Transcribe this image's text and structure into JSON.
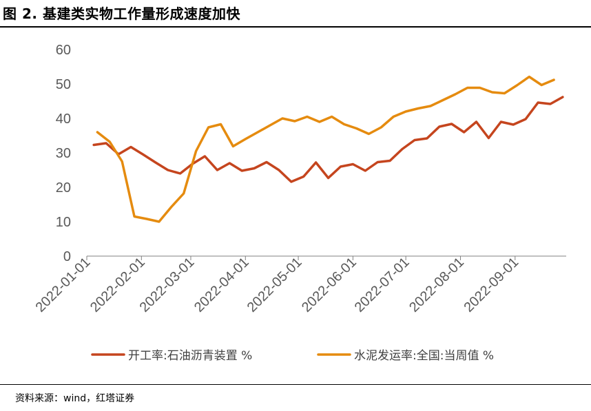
{
  "figure": {
    "title": "图 2. 基建类实物工作量形成速度加快",
    "source": "资料来源：wind，红塔证券"
  },
  "chart_data": {
    "type": "line",
    "title": "",
    "xlabel": "",
    "ylabel": "",
    "ylim": [
      0,
      60
    ],
    "yticks": [
      0,
      10,
      20,
      30,
      40,
      50,
      60
    ],
    "xlim": [
      "2022-01-01",
      "2022-09-30"
    ],
    "xticks": [
      "2022-01-01",
      "2022-02-01",
      "2022-03-01",
      "2022-04-01",
      "2022-05-01",
      "2022-06-01",
      "2022-07-01",
      "2022-08-01",
      "2022-09-01"
    ],
    "grid": false,
    "legend_position": "bottom",
    "series": [
      {
        "name": "开工率:石油沥青装置 %",
        "color": "#C5451E",
        "points": [
          [
            "2022-01-05",
            32.3
          ],
          [
            "2022-01-12",
            32.8
          ],
          [
            "2022-01-19",
            29.6
          ],
          [
            "2022-01-26",
            31.7
          ],
          [
            "2022-02-02",
            29.5
          ],
          [
            "2022-02-09",
            27.2
          ],
          [
            "2022-02-16",
            25.0
          ],
          [
            "2022-02-23",
            24.0
          ],
          [
            "2022-03-02",
            26.8
          ],
          [
            "2022-03-09",
            29.0
          ],
          [
            "2022-03-16",
            25.0
          ],
          [
            "2022-03-23",
            27.0
          ],
          [
            "2022-03-30",
            24.8
          ],
          [
            "2022-04-06",
            25.5
          ],
          [
            "2022-04-13",
            27.3
          ],
          [
            "2022-04-20",
            25.0
          ],
          [
            "2022-04-27",
            21.6
          ],
          [
            "2022-05-04",
            23.1
          ],
          [
            "2022-05-11",
            27.2
          ],
          [
            "2022-05-18",
            22.7
          ],
          [
            "2022-05-25",
            26.0
          ],
          [
            "2022-06-01",
            26.7
          ],
          [
            "2022-06-08",
            24.8
          ],
          [
            "2022-06-15",
            27.3
          ],
          [
            "2022-06-22",
            27.7
          ],
          [
            "2022-06-29",
            31.1
          ],
          [
            "2022-07-06",
            33.7
          ],
          [
            "2022-07-13",
            34.2
          ],
          [
            "2022-07-20",
            37.6
          ],
          [
            "2022-07-27",
            38.4
          ],
          [
            "2022-08-03",
            36.0
          ],
          [
            "2022-08-10",
            39.0
          ],
          [
            "2022-08-17",
            34.3
          ],
          [
            "2022-08-24",
            39.0
          ],
          [
            "2022-08-31",
            38.2
          ],
          [
            "2022-09-07",
            39.8
          ],
          [
            "2022-09-14",
            44.6
          ],
          [
            "2022-09-21",
            44.2
          ],
          [
            "2022-09-28",
            46.2
          ]
        ]
      },
      {
        "name": "水泥发运率:全国:当周值 %",
        "color": "#E58B0F",
        "points": [
          [
            "2022-01-07",
            36.0
          ],
          [
            "2022-01-14",
            33.2
          ],
          [
            "2022-01-21",
            27.5
          ],
          [
            "2022-01-28",
            11.5
          ],
          [
            "2022-02-04",
            10.8
          ],
          [
            "2022-02-11",
            10.0
          ],
          [
            "2022-02-18",
            14.3
          ],
          [
            "2022-02-25",
            18.2
          ],
          [
            "2022-03-04",
            30.5
          ],
          [
            "2022-03-11",
            37.4
          ],
          [
            "2022-03-18",
            38.3
          ],
          [
            "2022-03-25",
            31.9
          ],
          [
            "2022-04-01",
            34.0
          ],
          [
            "2022-04-08",
            36.0
          ],
          [
            "2022-04-15",
            38.0
          ],
          [
            "2022-04-22",
            40.0
          ],
          [
            "2022-04-29",
            39.2
          ],
          [
            "2022-05-06",
            40.5
          ],
          [
            "2022-05-13",
            39.0
          ],
          [
            "2022-05-20",
            40.5
          ],
          [
            "2022-05-27",
            38.3
          ],
          [
            "2022-06-03",
            37.1
          ],
          [
            "2022-06-10",
            35.5
          ],
          [
            "2022-06-17",
            37.4
          ],
          [
            "2022-06-24",
            40.5
          ],
          [
            "2022-07-01",
            42.0
          ],
          [
            "2022-07-08",
            42.9
          ],
          [
            "2022-07-15",
            43.6
          ],
          [
            "2022-07-22",
            45.3
          ],
          [
            "2022-07-29",
            47.0
          ],
          [
            "2022-08-05",
            48.9
          ],
          [
            "2022-08-12",
            48.9
          ],
          [
            "2022-08-19",
            47.6
          ],
          [
            "2022-08-26",
            47.3
          ],
          [
            "2022-09-02",
            49.6
          ],
          [
            "2022-09-09",
            52.1
          ],
          [
            "2022-09-16",
            49.7
          ],
          [
            "2022-09-23",
            51.2
          ]
        ]
      }
    ]
  }
}
